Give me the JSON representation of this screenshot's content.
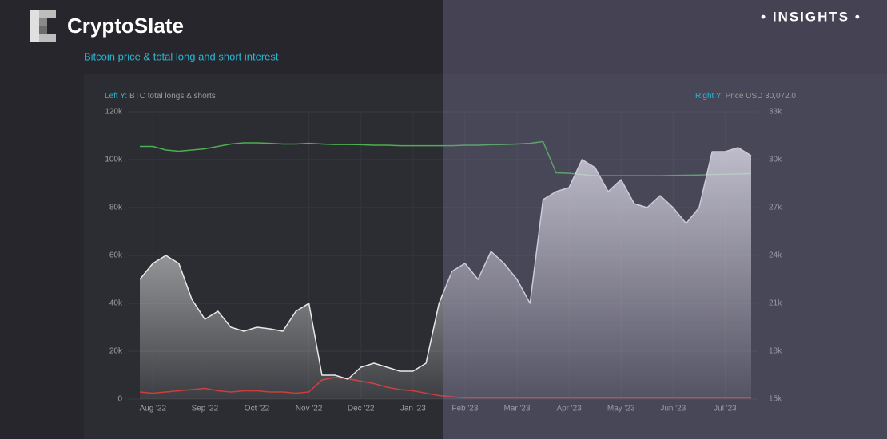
{
  "header": {
    "brand": "CryptoSlate",
    "badge": "• INSIGHTS •"
  },
  "chart_data": {
    "type": "line",
    "title": "Bitcoin price & total long and short interest",
    "left_axis_label": "Left Y:",
    "left_axis_title": "BTC total longs & shorts",
    "right_axis_label": "Right Y:",
    "right_axis_title": "Price USD 30,072.0",
    "categories": [
      null,
      "Aug '22",
      null,
      null,
      null,
      "Sep '22",
      null,
      null,
      null,
      "Oct '22",
      null,
      null,
      null,
      "Nov '22",
      null,
      null,
      null,
      "Dec '22",
      null,
      null,
      null,
      "Jan '23",
      null,
      null,
      null,
      "Feb '23",
      null,
      null,
      null,
      "Mar '23",
      null,
      null,
      null,
      "Apr '23",
      null,
      null,
      null,
      "May '23",
      null,
      null,
      null,
      "Jun '23",
      null,
      null,
      null,
      "Jul '23",
      null,
      null
    ],
    "series": [
      {
        "color": "#4caf50",
        "axis": "y",
        "style": "line",
        "values": [
          105500,
          105500,
          104000,
          103500,
          104000,
          104500,
          105500,
          106500,
          107000,
          107000,
          106800,
          106500,
          106500,
          106800,
          106500,
          106300,
          106300,
          106200,
          106000,
          106000,
          105800,
          105800,
          105800,
          105800,
          105800,
          106000,
          106000,
          106200,
          106300,
          106500,
          106800,
          107500,
          94500,
          94300,
          93800,
          93300,
          93300,
          93300,
          93300,
          93300,
          93300,
          93400,
          93500,
          93600,
          93800,
          93900,
          94000,
          94200
        ]
      },
      {
        "color": "#c62828",
        "axis": "y",
        "style": "line",
        "values": [
          3000,
          2500,
          3000,
          3500,
          4000,
          4500,
          3500,
          3000,
          3500,
          3500,
          3000,
          3000,
          2500,
          3000,
          8000,
          9000,
          8500,
          7500,
          6500,
          5000,
          4000,
          3500,
          2500,
          1500,
          1000,
          500,
          500,
          500,
          500,
          500,
          500,
          500,
          500,
          500,
          500,
          500,
          500,
          500,
          500,
          500,
          500,
          500,
          500,
          500,
          500,
          500,
          500,
          500
        ]
      },
      {
        "color": "#e8e8e8",
        "axis": "y2",
        "style": "area",
        "values": [
          22500,
          23500,
          24000,
          23500,
          21250,
          20000,
          20500,
          19500,
          19250,
          19500,
          19400,
          19250,
          20500,
          21000,
          16500,
          16500,
          16250,
          17000,
          17250,
          17000,
          16750,
          16750,
          17250,
          21000,
          23000,
          23500,
          22500,
          24250,
          23500,
          22500,
          21000,
          27500,
          28000,
          28250,
          30000,
          29500,
          28000,
          28750,
          27250,
          27000,
          27750,
          27000,
          26000,
          27000,
          30500,
          30500,
          30750,
          30250
        ]
      }
    ],
    "ylim": [
      0,
      120000
    ],
    "yticks": [
      0,
      {
        "value": 20000,
        "label": "20k"
      },
      {
        "value": 40000,
        "label": "40k"
      },
      {
        "value": 60000,
        "label": "60k"
      },
      {
        "value": 80000,
        "label": "80k"
      },
      {
        "value": 100000,
        "label": "100k"
      },
      {
        "value": 120000,
        "label": "120k"
      }
    ],
    "y2lim": [
      15000,
      33000
    ],
    "y2ticks": [
      {
        "value": 15000,
        "label": "15k"
      },
      {
        "value": 18000,
        "label": "18k"
      },
      {
        "value": 21000,
        "label": "21k"
      },
      {
        "value": 24000,
        "label": "24k"
      },
      {
        "value": 27000,
        "label": "27k"
      },
      {
        "value": 30000,
        "label": "30k"
      },
      {
        "value": 33000,
        "label": "33k"
      }
    ],
    "grid": true
  }
}
